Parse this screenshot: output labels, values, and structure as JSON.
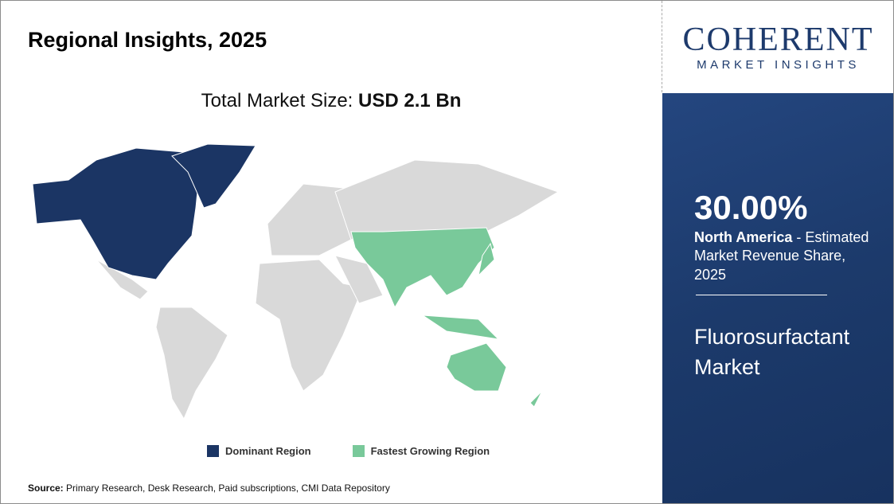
{
  "header": {
    "title": "Regional Insights, 2025",
    "total_label": "Total Market Size:",
    "total_value": "USD 2.1 Bn"
  },
  "legend": [
    "Dominant Region",
    "Fastest Growing Region"
  ],
  "footer": {
    "source_label": "Source:",
    "source_text": "Primary Research, Desk Research, Paid subscriptions, CMI Data Repository"
  },
  "logo": {
    "name": "COHERENT",
    "tagline": "MARKET INSIGHTS"
  },
  "panel": {
    "share": "30.00%",
    "region": "North America",
    "description": "- Estimated Market Revenue Share, 2025",
    "market": "Fluorosurfactant Market"
  }
}
